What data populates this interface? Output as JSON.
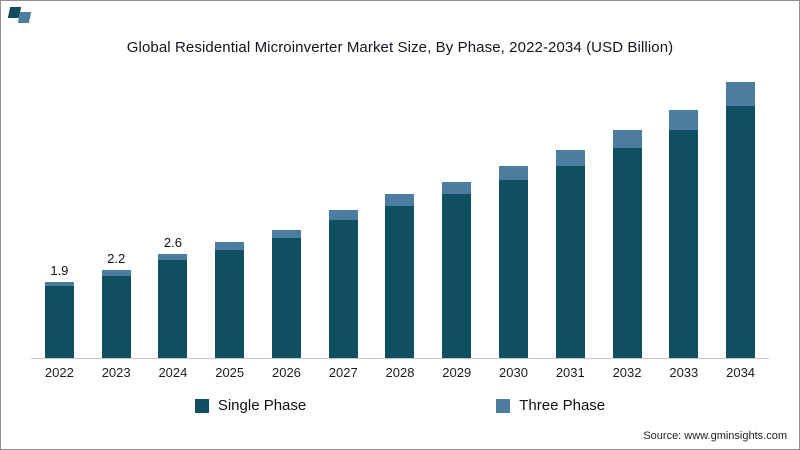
{
  "header": {
    "title": "Global Residential Microinverter Market Size, By Phase, 2022-2034 (USD Billion)"
  },
  "footer": {
    "source": "Source: www.gminsights.com"
  },
  "legend": [
    {
      "label": "Single Phase",
      "color": "#104f62"
    },
    {
      "label": "Three Phase",
      "color": "#4b7e9e"
    }
  ],
  "chart_data": {
    "type": "bar",
    "stacked": true,
    "title": "Global Residential Microinverter Market Size, By Phase, 2022-2034 (USD Billion)",
    "xlabel": "",
    "ylabel": "USD Billion",
    "ylim": [
      0,
      7.5
    ],
    "grid": false,
    "legend_position": "bottom",
    "categories": [
      "2022",
      "2023",
      "2024",
      "2025",
      "2026",
      "2027",
      "2028",
      "2029",
      "2030",
      "2031",
      "2032",
      "2033",
      "2034"
    ],
    "series": [
      {
        "name": "Single Phase",
        "color": "#104f62",
        "values": [
          1.8,
          2.05,
          2.45,
          2.7,
          3.0,
          3.45,
          3.8,
          4.1,
          4.45,
          4.8,
          5.25,
          5.7,
          6.3
        ]
      },
      {
        "name": "Three Phase",
        "color": "#4b7e9e",
        "values": [
          0.1,
          0.15,
          0.15,
          0.2,
          0.2,
          0.25,
          0.3,
          0.3,
          0.35,
          0.4,
          0.45,
          0.5,
          0.6
        ]
      }
    ],
    "totals": [
      1.9,
      2.2,
      2.6,
      2.9,
      3.2,
      3.7,
      4.1,
      4.4,
      4.8,
      5.2,
      5.7,
      6.2,
      6.9
    ],
    "data_labels": [
      "1.9",
      "2.2",
      "2.6",
      null,
      null,
      null,
      null,
      null,
      null,
      null,
      null,
      null,
      null
    ]
  }
}
